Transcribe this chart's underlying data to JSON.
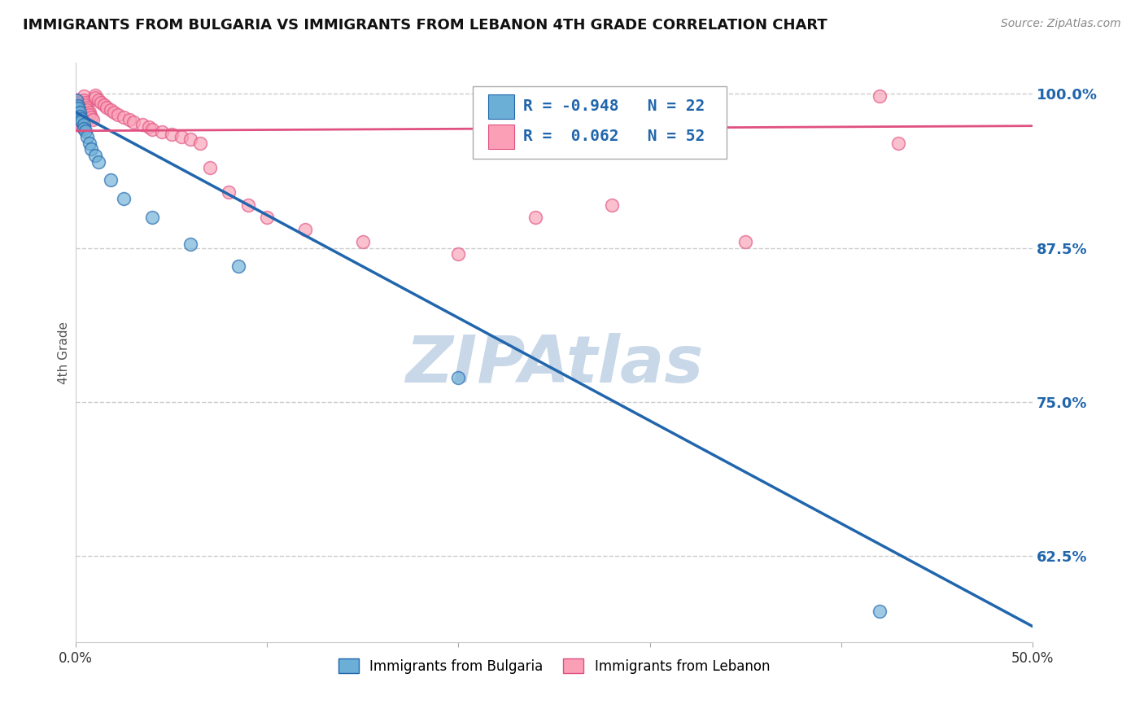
{
  "title": "IMMIGRANTS FROM BULGARIA VS IMMIGRANTS FROM LEBANON 4TH GRADE CORRELATION CHART",
  "source": "Source: ZipAtlas.com",
  "ylabel": "4th Grade",
  "xlim": [
    0.0,
    0.5
  ],
  "ylim": [
    0.555,
    1.025
  ],
  "yticks": [
    1.0,
    0.875,
    0.75,
    0.625
  ],
  "ytick_labels": [
    "100.0%",
    "87.5%",
    "75.0%",
    "62.5%"
  ],
  "xticks": [
    0.0,
    0.1,
    0.2,
    0.3,
    0.4,
    0.5
  ],
  "xtick_labels": [
    "0.0%",
    "",
    "",
    "",
    "",
    "50.0%"
  ],
  "legend_labels": [
    "Immigrants from Bulgaria",
    "Immigrants from Lebanon"
  ],
  "R_bulgaria": -0.948,
  "N_bulgaria": 22,
  "R_lebanon": 0.062,
  "N_lebanon": 52,
  "color_bulgaria": "#6baed6",
  "color_lebanon": "#fa9fb5",
  "line_color_bulgaria": "#2166ac",
  "line_color_lebanon": "#e05080",
  "background_color": "#ffffff",
  "watermark": "ZIPAtlas",
  "watermark_color": "#c8d8e8",
  "bulgaria_x": [
    0.0005,
    0.001,
    0.001,
    0.002,
    0.002,
    0.003,
    0.003,
    0.004,
    0.004,
    0.005,
    0.006,
    0.007,
    0.008,
    0.01,
    0.012,
    0.018,
    0.025,
    0.04,
    0.06,
    0.085,
    0.2,
    0.42
  ],
  "bulgaria_y": [
    0.995,
    0.99,
    0.988,
    0.985,
    0.982,
    0.98,
    0.978,
    0.975,
    0.972,
    0.97,
    0.965,
    0.96,
    0.955,
    0.95,
    0.945,
    0.93,
    0.915,
    0.9,
    0.878,
    0.86,
    0.77,
    0.58
  ],
  "lebanon_x": [
    0.0005,
    0.001,
    0.001,
    0.001,
    0.002,
    0.002,
    0.002,
    0.003,
    0.003,
    0.003,
    0.004,
    0.004,
    0.005,
    0.005,
    0.006,
    0.006,
    0.007,
    0.007,
    0.008,
    0.009,
    0.01,
    0.01,
    0.012,
    0.013,
    0.015,
    0.016,
    0.018,
    0.02,
    0.022,
    0.025,
    0.028,
    0.03,
    0.035,
    0.038,
    0.04,
    0.045,
    0.05,
    0.055,
    0.06,
    0.065,
    0.07,
    0.08,
    0.09,
    0.1,
    0.12,
    0.15,
    0.2,
    0.24,
    0.28,
    0.35,
    0.42,
    0.43
  ],
  "lebanon_y": [
    0.995,
    0.993,
    0.99,
    0.988,
    0.986,
    0.984,
    0.98,
    0.978,
    0.976,
    0.974,
    0.998,
    0.995,
    0.993,
    0.991,
    0.989,
    0.987,
    0.985,
    0.983,
    0.981,
    0.979,
    0.999,
    0.997,
    0.995,
    0.993,
    0.991,
    0.989,
    0.987,
    0.985,
    0.983,
    0.981,
    0.979,
    0.977,
    0.975,
    0.973,
    0.971,
    0.969,
    0.967,
    0.965,
    0.963,
    0.96,
    0.94,
    0.92,
    0.91,
    0.9,
    0.89,
    0.88,
    0.87,
    0.9,
    0.91,
    0.88,
    0.998,
    0.96
  ],
  "bul_line_x": [
    0.0,
    0.5
  ],
  "bul_line_y": [
    0.985,
    0.568
  ],
  "leb_line_x": [
    0.0,
    0.5
  ],
  "leb_line_y": [
    0.97,
    0.974
  ]
}
